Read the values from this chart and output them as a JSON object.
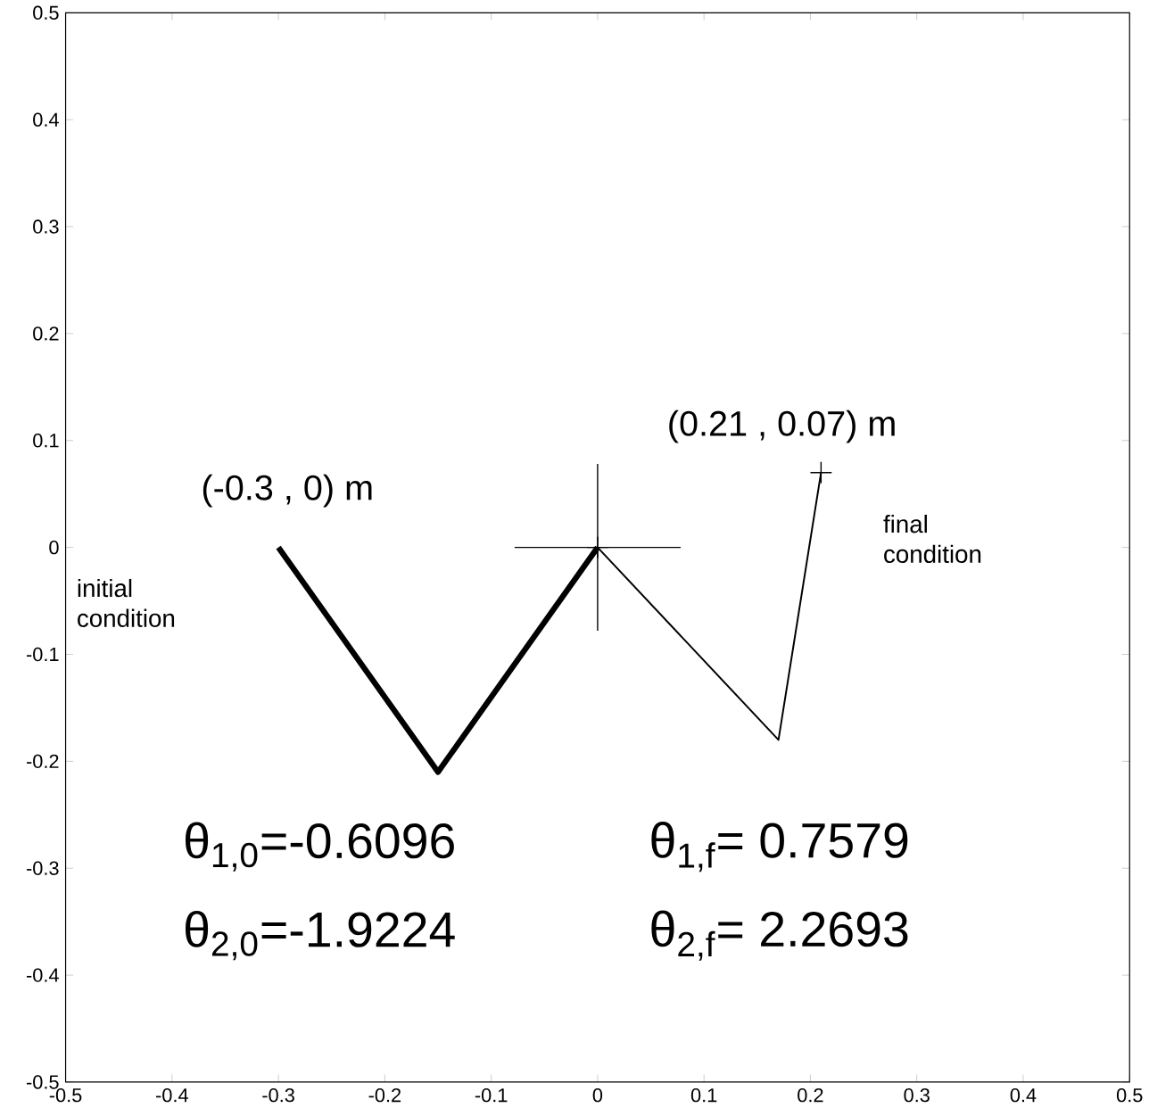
{
  "chart_data": {
    "type": "line",
    "xlim": [
      -0.5,
      0.5
    ],
    "ylim": [
      -0.5,
      0.5
    ],
    "xticks": [
      -0.5,
      -0.4,
      -0.3,
      -0.2,
      -0.1,
      0,
      0.1,
      0.2,
      0.3,
      0.4,
      0.5
    ],
    "yticks": [
      -0.5,
      -0.4,
      -0.3,
      -0.2,
      -0.1,
      0,
      0.1,
      0.2,
      0.3,
      0.4,
      0.5
    ],
    "series": [
      {
        "color": "#000000",
        "x": [
          -0.3,
          -0.15,
          0
        ],
        "values": [
          0,
          -0.21,
          0
        ]
      },
      {
        "color": "#000000",
        "x": [
          0,
          0.17,
          0.21
        ],
        "values": [
          0,
          -0.18,
          0.07
        ]
      },
      {
        "type": "scatter",
        "color": "#000000",
        "marker": "cross",
        "x": [
          0
        ],
        "values": [
          0
        ],
        "errors": [
          0.078
        ],
        "xerrors": [
          0.078
        ]
      },
      {
        "type": "scatter",
        "color": "#000000",
        "marker": "cross",
        "x": [
          0.21
        ],
        "values": [
          0.07
        ]
      }
    ],
    "annotations": [
      {
        "text": "(-0.3 , 0) m",
        "x": -0.3,
        "y": 0
      },
      {
        "text": "(0.21 , 0.07) m",
        "x": 0.21,
        "y": 0.07
      },
      "initial condition",
      "final condition",
      "θ$_{1,0}$=-0.6096",
      "θ$_{1,f}$= 0.7579",
      "θ$_{2,0}$=-1.9224",
      "θ$_{2,f}$= 2.2693"
    ]
  }
}
